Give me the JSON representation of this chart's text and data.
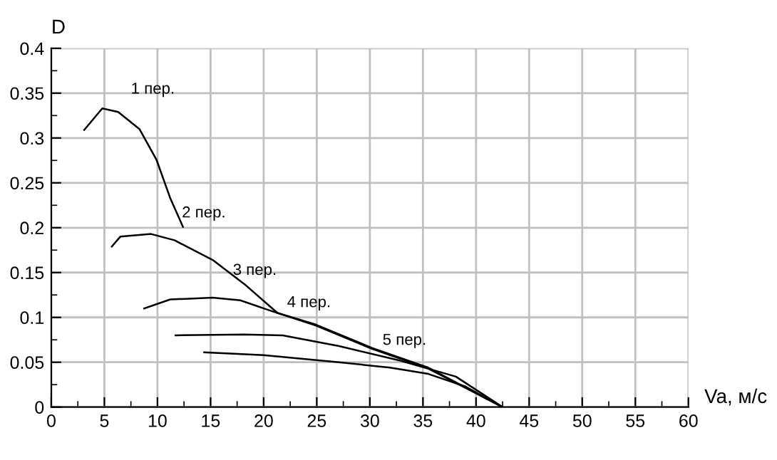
{
  "chart_data": {
    "type": "line",
    "xlabel": "Va, м/с",
    "ylabel": "D",
    "xlim": [
      0,
      60
    ],
    "ylim": [
      0,
      0.4
    ],
    "xticks": [
      0,
      {
        "value": 2.5,
        "label": null
      },
      5,
      {
        "value": 7.5,
        "label": null
      },
      10,
      {
        "value": 12.5,
        "label": null
      },
      15,
      {
        "value": 17.5,
        "label": null
      },
      20,
      {
        "value": 22.5,
        "label": null
      },
      25,
      {
        "value": 27.5,
        "label": null
      },
      30,
      {
        "value": 32.5,
        "label": null
      },
      35,
      {
        "value": 37.5,
        "label": null
      },
      40,
      {
        "value": 42.5,
        "label": null
      },
      45,
      {
        "value": 47.5,
        "label": null
      },
      50,
      {
        "value": 52.5,
        "label": null
      },
      55,
      {
        "value": 57.5,
        "label": null
      },
      60
    ],
    "yticks": [
      0,
      {
        "value": 0.025,
        "label": null
      },
      0.05,
      {
        "value": 0.075,
        "label": null
      },
      0.1,
      {
        "value": 0.125,
        "label": null
      },
      0.15,
      {
        "value": 0.175,
        "label": null
      },
      0.2,
      {
        "value": 0.225,
        "label": null
      },
      0.25,
      {
        "value": 0.275,
        "label": null
      },
      0.3,
      {
        "value": 0.325,
        "label": null
      },
      0.35,
      {
        "value": 0.375,
        "label": null
      },
      0.4
    ],
    "grid": true,
    "line_style": "solid",
    "marker": "none",
    "series": [
      {
        "color": "#000000",
        "x": [
          3.1,
          4.8,
          6.3,
          8.3,
          9.9,
          11.2,
          12.4
        ],
        "values": [
          0.309,
          0.333,
          0.329,
          0.31,
          0.276,
          0.233,
          0.201
        ]
      },
      {
        "color": "#000000",
        "x": [
          5.7,
          6.5,
          9.4,
          11.6,
          15.2,
          18.2,
          21.3,
          24.9,
          30.2,
          35.5,
          42.5
        ],
        "values": [
          0.179,
          0.19,
          0.193,
          0.186,
          0.164,
          0.137,
          0.105,
          0.092,
          0.066,
          0.044,
          0
        ]
      },
      {
        "color": "#000000",
        "x": [
          8.75,
          11.2,
          15.2,
          17.8,
          20.5,
          24.9,
          30.2,
          35.5,
          42.5
        ],
        "values": [
          0.11,
          0.12,
          0.122,
          0.119,
          0.108,
          0.091,
          0.065,
          0.043,
          0
        ]
      },
      {
        "color": "#000000",
        "x": [
          11.7,
          18.2,
          21.8,
          27.1,
          32.8,
          38.1,
          42.5
        ],
        "values": [
          0.08,
          0.081,
          0.08,
          0.068,
          0.052,
          0.034,
          0
        ]
      },
      {
        "color": "#000000",
        "x": [
          14.4,
          20.0,
          27.1,
          31.9,
          35.5,
          39.0,
          42.5
        ],
        "values": [
          0.061,
          0.058,
          0.05,
          0.044,
          0.037,
          0.023,
          0
        ]
      }
    ],
    "annotations": [
      "1 пер.",
      "2 пер.",
      "3 пер.",
      "4 пер.",
      "5 пер."
    ]
  }
}
